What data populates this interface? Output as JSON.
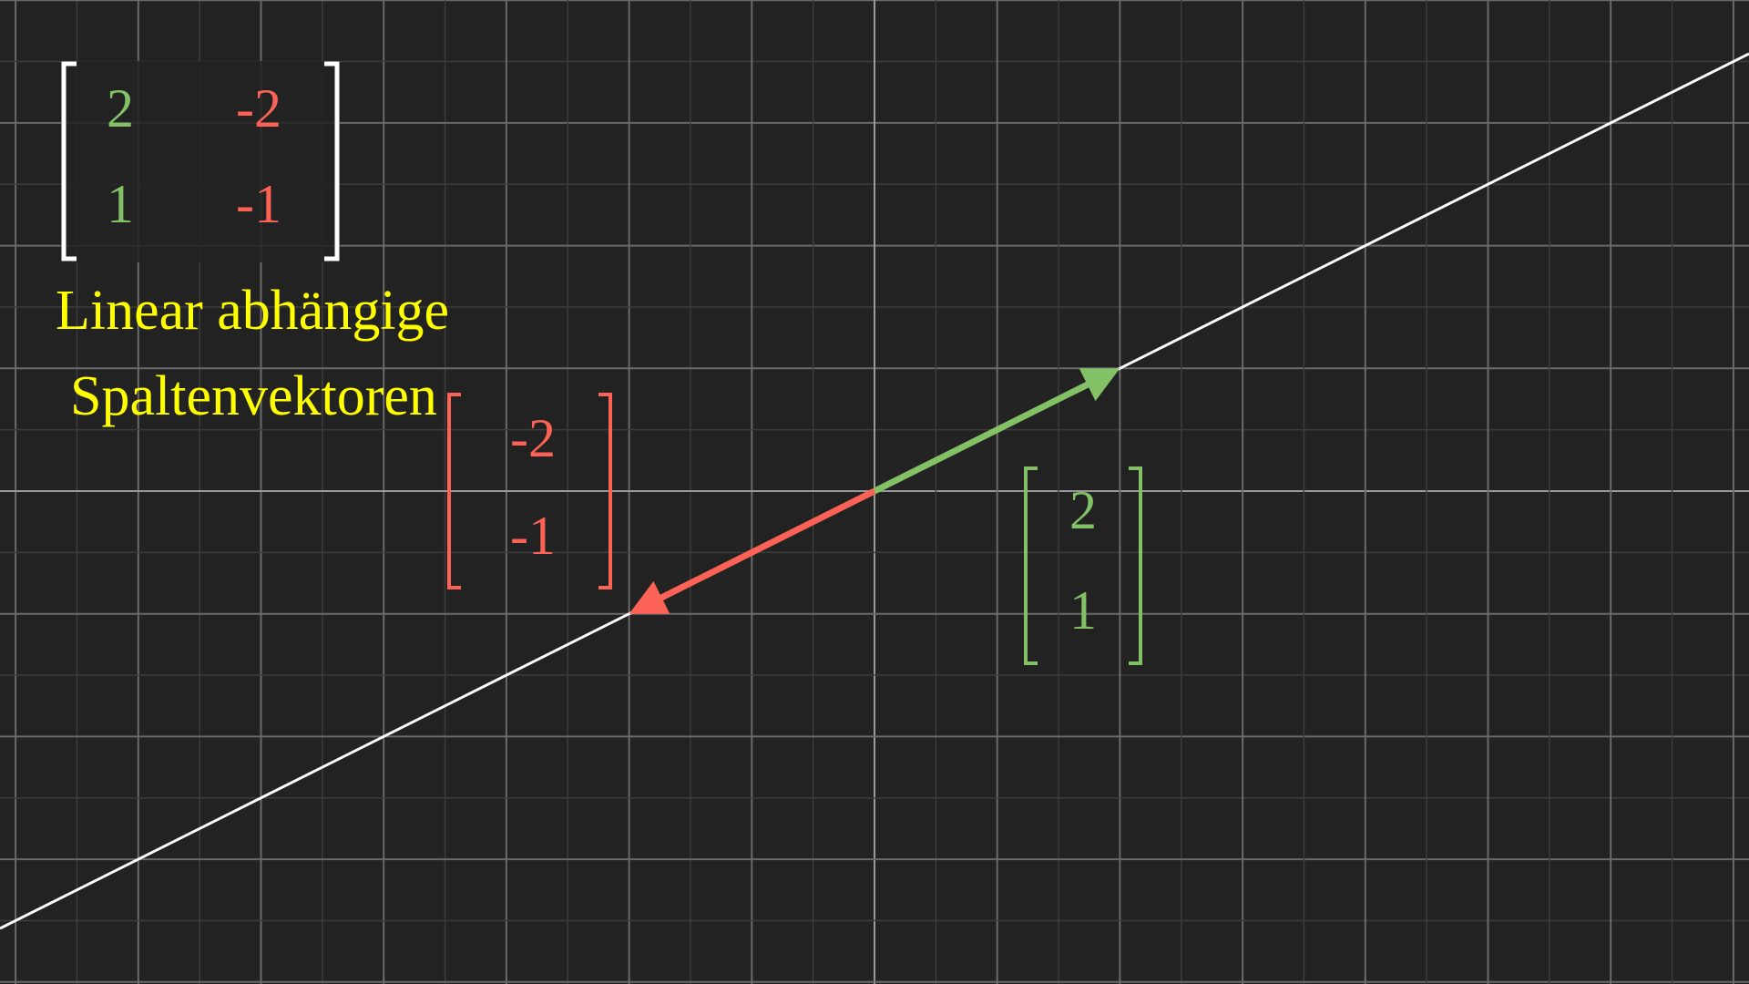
{
  "matrix": {
    "columns": [
      {
        "color": "#83c167",
        "entries": [
          2,
          1
        ]
      },
      {
        "color": "#fc6255",
        "entries": [
          -2,
          -1
        ]
      }
    ]
  },
  "caption": [
    "Linear abhängige",
    "Spaltenvektoren"
  ],
  "vectors": [
    {
      "color": "#83c167",
      "components": [
        2,
        1
      ]
    },
    {
      "color": "#fc6255",
      "components": [
        -2,
        -1
      ]
    }
  ]
}
